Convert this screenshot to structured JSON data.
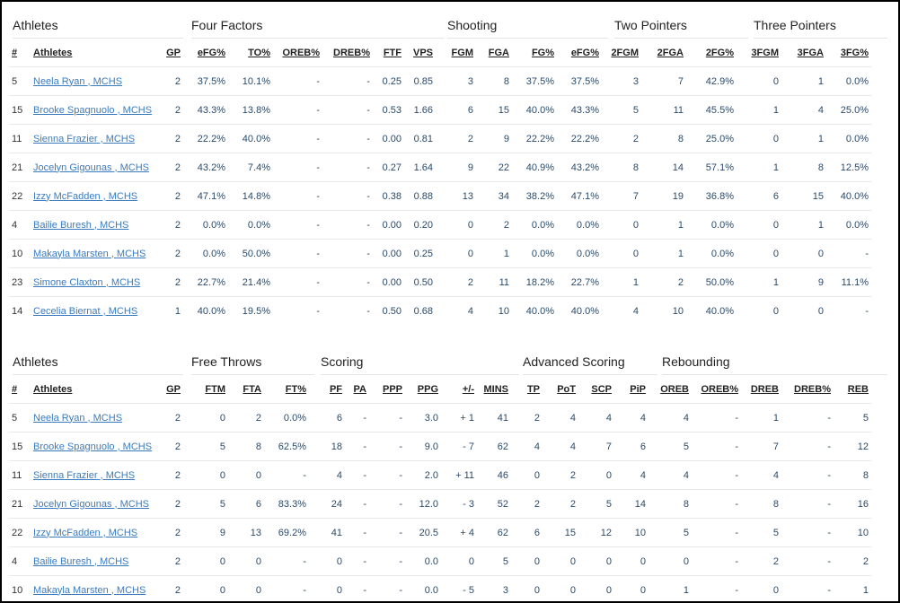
{
  "table1": {
    "groups": [
      "Athletes",
      "Four Factors",
      "Shooting",
      "Two Pointers",
      "Three Pointers"
    ],
    "headers": [
      "#",
      "Athletes",
      "GP",
      "eFG%",
      "TO%",
      "OREB%",
      "DREB%",
      "FTF",
      "VPS",
      "FGM",
      "FGA",
      "FG%",
      "eFG%",
      "2FGM",
      "2FGA",
      "2FG%",
      "3FGM",
      "3FGA",
      "3FG%"
    ],
    "rows": [
      [
        "5",
        "Neela Ryan , MCHS",
        "2",
        "37.5%",
        "10.1%",
        "-",
        "-",
        "0.25",
        "0.85",
        "3",
        "8",
        "37.5%",
        "37.5%",
        "3",
        "7",
        "42.9%",
        "0",
        "1",
        "0.0%"
      ],
      [
        "15",
        "Brooke Spagnuolo , MCHS",
        "2",
        "43.3%",
        "13.8%",
        "-",
        "-",
        "0.53",
        "1.66",
        "6",
        "15",
        "40.0%",
        "43.3%",
        "5",
        "11",
        "45.5%",
        "1",
        "4",
        "25.0%"
      ],
      [
        "11",
        "Sienna Frazier , MCHS",
        "2",
        "22.2%",
        "40.0%",
        "-",
        "-",
        "0.00",
        "0.81",
        "2",
        "9",
        "22.2%",
        "22.2%",
        "2",
        "8",
        "25.0%",
        "0",
        "1",
        "0.0%"
      ],
      [
        "21",
        "Jocelyn Gigounas , MCHS",
        "2",
        "43.2%",
        "7.4%",
        "-",
        "-",
        "0.27",
        "1.64",
        "9",
        "22",
        "40.9%",
        "43.2%",
        "8",
        "14",
        "57.1%",
        "1",
        "8",
        "12.5%"
      ],
      [
        "22",
        "Izzy McFadden , MCHS",
        "2",
        "47.1%",
        "14.8%",
        "-",
        "-",
        "0.38",
        "0.88",
        "13",
        "34",
        "38.2%",
        "47.1%",
        "7",
        "19",
        "36.8%",
        "6",
        "15",
        "40.0%"
      ],
      [
        "4",
        "Bailie Buresh , MCHS",
        "2",
        "0.0%",
        "0.0%",
        "-",
        "-",
        "0.00",
        "0.20",
        "0",
        "2",
        "0.0%",
        "0.0%",
        "0",
        "1",
        "0.0%",
        "0",
        "1",
        "0.0%"
      ],
      [
        "10",
        "Makayla Marsten , MCHS",
        "2",
        "0.0%",
        "50.0%",
        "-",
        "-",
        "0.00",
        "0.25",
        "0",
        "1",
        "0.0%",
        "0.0%",
        "0",
        "1",
        "0.0%",
        "0",
        "0",
        "-"
      ],
      [
        "23",
        "Simone Claxton , MCHS",
        "2",
        "22.7%",
        "21.4%",
        "-",
        "-",
        "0.00",
        "0.50",
        "2",
        "11",
        "18.2%",
        "22.7%",
        "1",
        "2",
        "50.0%",
        "1",
        "9",
        "11.1%"
      ],
      [
        "14",
        "Cecelia Biernat , MCHS",
        "1",
        "40.0%",
        "19.5%",
        "-",
        "-",
        "0.50",
        "0.68",
        "4",
        "10",
        "40.0%",
        "40.0%",
        "4",
        "10",
        "40.0%",
        "0",
        "0",
        "-"
      ]
    ]
  },
  "table2": {
    "groups": [
      "Athletes",
      "Free Throws",
      "Scoring",
      "Advanced Scoring",
      "Rebounding"
    ],
    "headers": [
      "#",
      "Athletes",
      "GP",
      "FTM",
      "FTA",
      "FT%",
      "PF",
      "PA",
      "PPP",
      "PPG",
      "+/-",
      "MINS",
      "TP",
      "PoT",
      "SCP",
      "PiP",
      "OREB",
      "OREB%",
      "DREB",
      "DREB%",
      "REB"
    ],
    "rows": [
      [
        "5",
        "Neela Ryan , MCHS",
        "2",
        "0",
        "2",
        "0.0%",
        "6",
        "-",
        "-",
        "3.0",
        "+ 1",
        "41",
        "2",
        "4",
        "4",
        "4",
        "4",
        "-",
        "1",
        "-",
        "5"
      ],
      [
        "15",
        "Brooke Spagnuolo , MCHS",
        "2",
        "5",
        "8",
        "62.5%",
        "18",
        "-",
        "-",
        "9.0",
        "- 7",
        "62",
        "4",
        "4",
        "7",
        "6",
        "5",
        "-",
        "7",
        "-",
        "12"
      ],
      [
        "11",
        "Sienna Frazier , MCHS",
        "2",
        "0",
        "0",
        "-",
        "4",
        "-",
        "-",
        "2.0",
        "+ 11",
        "46",
        "0",
        "2",
        "0",
        "4",
        "4",
        "-",
        "4",
        "-",
        "8"
      ],
      [
        "21",
        "Jocelyn Gigounas , MCHS",
        "2",
        "5",
        "6",
        "83.3%",
        "24",
        "-",
        "-",
        "12.0",
        "- 3",
        "52",
        "2",
        "2",
        "5",
        "14",
        "8",
        "-",
        "8",
        "-",
        "16"
      ],
      [
        "22",
        "Izzy McFadden , MCHS",
        "2",
        "9",
        "13",
        "69.2%",
        "41",
        "-",
        "-",
        "20.5",
        "+ 4",
        "62",
        "6",
        "15",
        "12",
        "10",
        "5",
        "-",
        "5",
        "-",
        "10"
      ],
      [
        "4",
        "Bailie Buresh , MCHS",
        "2",
        "0",
        "0",
        "-",
        "0",
        "-",
        "-",
        "0.0",
        "0",
        "5",
        "0",
        "0",
        "0",
        "0",
        "0",
        "-",
        "2",
        "-",
        "2"
      ],
      [
        "10",
        "Makayla Marsten , MCHS",
        "2",
        "0",
        "0",
        "-",
        "0",
        "-",
        "-",
        "0.0",
        "- 5",
        "3",
        "0",
        "0",
        "0",
        "0",
        "1",
        "-",
        "0",
        "-",
        "1"
      ]
    ]
  }
}
